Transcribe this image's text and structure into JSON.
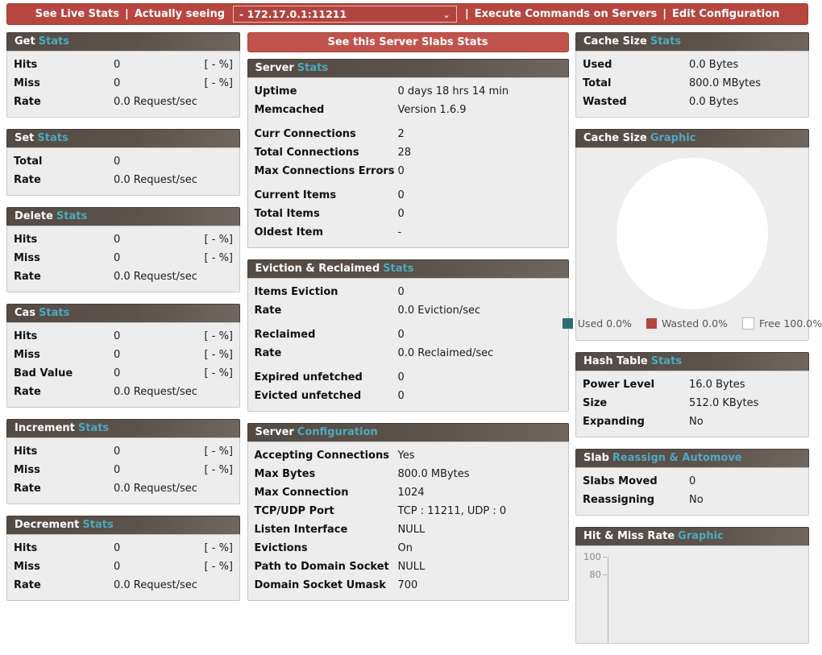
{
  "theme": {
    "topbar_red": "#b6463f",
    "button_red": "#c0544d",
    "panel_header_dark": "#5b524c",
    "accent_teal": "#4fa9bc",
    "panel_body_gray": "#ededed"
  },
  "topbar": {
    "link_live_stats": "See Live Stats",
    "sep1": "|",
    "label_actually_seeing": "Actually seeing",
    "select_value": "- 172.17.0.1:11211",
    "sep2": "|",
    "link_execute_commands": "Execute Commands on Servers",
    "sep3": "|",
    "link_edit_configuration": "Edit Configuration"
  },
  "columns": {
    "left": {
      "panels": [
        {
          "type": "rows",
          "title": "Get",
          "title_accent": "Stats",
          "rows": [
            {
              "label": "Hits",
              "value": "0",
              "extra": "[ - %]"
            },
            {
              "label": "Miss",
              "value": "0",
              "extra": "[ - %]"
            },
            {
              "label": "Rate",
              "value": "0.0 Request/sec"
            }
          ]
        },
        {
          "type": "rows",
          "title": "Set",
          "title_accent": "Stats",
          "rows": [
            {
              "label": "Total",
              "value": "0"
            },
            {
              "label": "Rate",
              "value": "0.0 Request/sec"
            }
          ]
        },
        {
          "type": "rows",
          "title": "Delete",
          "title_accent": "Stats",
          "rows": [
            {
              "label": "Hits",
              "value": "0",
              "extra": "[ - %]"
            },
            {
              "label": "Miss",
              "value": "0",
              "extra": "[ - %]"
            },
            {
              "label": "Rate",
              "value": "0.0 Request/sec"
            }
          ]
        },
        {
          "type": "rows",
          "title": "Cas",
          "title_accent": "Stats",
          "rows": [
            {
              "label": "Hits",
              "value": "0",
              "extra": "[ - %]"
            },
            {
              "label": "Miss",
              "value": "0",
              "extra": "[ - %]"
            },
            {
              "label": "Bad Value",
              "value": "0",
              "extra": "[ - %]"
            },
            {
              "label": "Rate",
              "value": "0.0 Request/sec"
            }
          ]
        },
        {
          "type": "rows",
          "title": "Increment",
          "title_accent": "Stats",
          "rows": [
            {
              "label": "Hits",
              "value": "0",
              "extra": "[ - %]"
            },
            {
              "label": "Miss",
              "value": "0",
              "extra": "[ - %]"
            },
            {
              "label": "Rate",
              "value": "0.0 Request/sec"
            }
          ]
        },
        {
          "type": "rows",
          "title": "Decrement",
          "title_accent": "Stats",
          "rows": [
            {
              "label": "Hits",
              "value": "0",
              "extra": "[ - %]"
            },
            {
              "label": "Miss",
              "value": "0",
              "extra": "[ - %]"
            },
            {
              "label": "Rate",
              "value": "0.0 Request/sec"
            }
          ]
        }
      ]
    },
    "middle": {
      "button_label": "See this Server Slabs Stats",
      "panels": [
        {
          "type": "rows",
          "title": "Server",
          "title_accent": "Stats",
          "rows": [
            {
              "label": "Uptime",
              "value": "0 days 18 hrs 14 min"
            },
            {
              "label": "Memcached",
              "value": "Version 1.6.9"
            },
            {
              "label": "Curr Connections",
              "value": "2",
              "gap": true
            },
            {
              "label": "Total Connections",
              "value": "28"
            },
            {
              "label": "Max Connections Errors",
              "value": "0"
            },
            {
              "label": "Current Items",
              "value": "0",
              "gap": true
            },
            {
              "label": "Total Items",
              "value": "0"
            },
            {
              "label": "Oldest Item",
              "value": "-"
            }
          ]
        },
        {
          "type": "rows",
          "title": "Eviction & Reclaimed",
          "title_accent": "Stats",
          "rows": [
            {
              "label": "Items Eviction",
              "value": "0"
            },
            {
              "label": "Rate",
              "value": "0.0 Eviction/sec"
            },
            {
              "label": "Reclaimed",
              "value": "0",
              "gap": true
            },
            {
              "label": "Rate",
              "value": "0.0 Reclaimed/sec"
            },
            {
              "label": "Expired unfetched",
              "value": "0",
              "gap": true
            },
            {
              "label": "Evicted unfetched",
              "value": "0"
            }
          ]
        },
        {
          "type": "rows",
          "title": "Server",
          "title_accent": "Configuration",
          "rows": [
            {
              "label": "Accepting Connections",
              "value": "Yes"
            },
            {
              "label": "Max Bytes",
              "value": "800.0 MBytes"
            },
            {
              "label": "Max Connection",
              "value": "1024"
            },
            {
              "label": "TCP/UDP Port",
              "value": "TCP : 11211, UDP : 0"
            },
            {
              "label": "Listen Interface",
              "value": "NULL"
            },
            {
              "label": "Evictions",
              "value": "On"
            },
            {
              "label": "Path to Domain Socket",
              "value": "NULL"
            },
            {
              "label": "Domain Socket Umask",
              "value": "700"
            }
          ]
        }
      ]
    },
    "right": {
      "panels": [
        {
          "type": "rows",
          "title": "Cache Size",
          "title_accent": "Stats",
          "rows": [
            {
              "label": "Used",
              "value": "0.0 Bytes"
            },
            {
              "label": "Total",
              "value": "800.0 MBytes"
            },
            {
              "label": "Wasted",
              "value": "0.0 Bytes"
            }
          ]
        },
        {
          "type": "pie",
          "title": "Cache Size",
          "title_accent": "Graphic",
          "legend": [
            {
              "label": "Used 0.0%",
              "color": "#2e6e73"
            },
            {
              "label": "Wasted 0.0%",
              "color": "#b5453f"
            },
            {
              "label": "Free 100.0%",
              "color": "#ffffff"
            }
          ]
        },
        {
          "type": "rows",
          "title": "Hash Table",
          "title_accent": "Stats",
          "rows": [
            {
              "label": "Power Level",
              "value": "16.0 Bytes"
            },
            {
              "label": "Size",
              "value": "512.0 KBytes"
            },
            {
              "label": "Expanding",
              "value": "No"
            }
          ]
        },
        {
          "type": "rows",
          "title": "Slab",
          "title_accent": "Reassign & Automove",
          "rows": [
            {
              "label": "Slabs Moved",
              "value": "0"
            },
            {
              "label": "Reassigning",
              "value": "No"
            }
          ]
        },
        {
          "type": "chart",
          "title": "Hit & Miss Rate",
          "title_accent": "Graphic",
          "y_ticks": [
            "100",
            "80"
          ]
        }
      ]
    }
  },
  "chart_data": [
    {
      "type": "pie",
      "title": "Cache Size Graphic",
      "labels": [
        "Used",
        "Wasted",
        "Free"
      ],
      "values": [
        0.0,
        0.0,
        100.0
      ],
      "colors": [
        "#2e6e73",
        "#b5453f",
        "#ffffff"
      ],
      "legend_entries": [
        "Used 0.0%",
        "Wasted 0.0%",
        "Free 100.0%"
      ],
      "legend_position": "bottom"
    },
    {
      "type": "line",
      "title": "Hit & Miss Rate Graphic",
      "ylim": [
        0,
        100
      ],
      "visible_y_ticks": [
        100,
        80
      ],
      "series": []
    }
  ]
}
